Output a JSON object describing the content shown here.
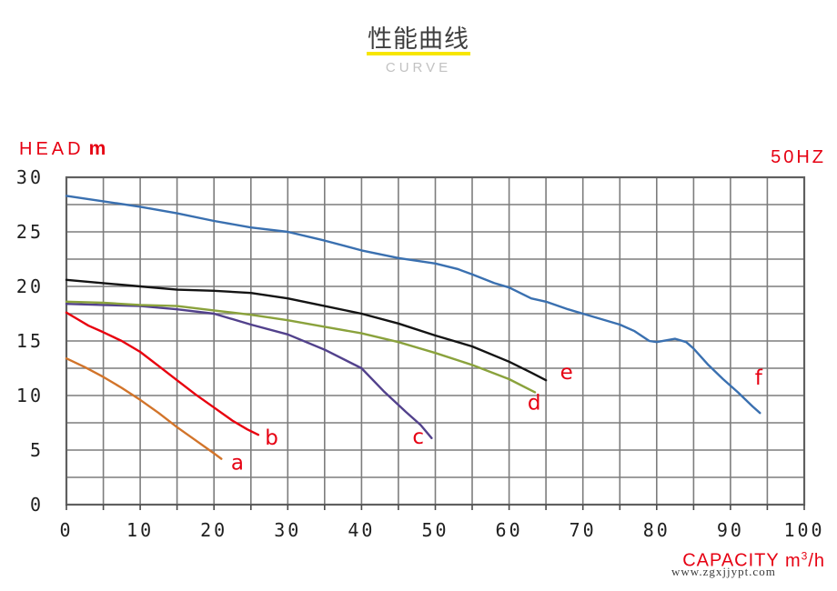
{
  "header": {
    "title": "性能曲线",
    "subtitle": "CURVE",
    "underline_color": "#f7e600"
  },
  "chart": {
    "head_label": "HEAD",
    "head_unit": "m",
    "freq_label": "50HZ",
    "capacity_label": "CAPACITY",
    "capacity_unit_base": "m",
    "capacity_unit_sup": "3",
    "capacity_unit_rest": "/h",
    "axis_title_color": "#e60012",
    "tick_label_color": "#1f1f1f",
    "grid_color": "#7d7d7d"
  },
  "watermark": "www.zgxjjypt.com",
  "chart_data": {
    "type": "line",
    "title": "性能曲线 (CURVE)",
    "xlabel": "CAPACITY m3/h",
    "ylabel": "HEAD m",
    "frequency": "50HZ",
    "xlim": [
      0,
      100
    ],
    "ylim": [
      0,
      30
    ],
    "x_ticks": [
      0,
      10,
      20,
      30,
      40,
      50,
      60,
      70,
      80,
      90,
      100
    ],
    "y_ticks": [
      0,
      5,
      10,
      15,
      20,
      25,
      30
    ],
    "grid": true,
    "grid_x_step": 5,
    "grid_y_step": 2.5,
    "series_label_color": "#e60012",
    "series": [
      {
        "name": "a",
        "color": "#d2742a",
        "label_pos": [
          22.3,
          3.2
        ],
        "points": [
          [
            0,
            13.4
          ],
          [
            2.5,
            12.6
          ],
          [
            5,
            11.7
          ],
          [
            7.5,
            10.7
          ],
          [
            10,
            9.6
          ],
          [
            12.5,
            8.4
          ],
          [
            15,
            7.1
          ],
          [
            17.5,
            5.9
          ],
          [
            20,
            4.7
          ],
          [
            21,
            4.2
          ]
        ]
      },
      {
        "name": "b",
        "color": "#e8000e",
        "label_pos": [
          26.9,
          5.5
        ],
        "points": [
          [
            0,
            17.6
          ],
          [
            1.5,
            17.0
          ],
          [
            3,
            16.4
          ],
          [
            5,
            15.8
          ],
          [
            7.5,
            15.0
          ],
          [
            10,
            14.0
          ],
          [
            12.5,
            12.7
          ],
          [
            15,
            11.4
          ],
          [
            17.5,
            10.1
          ],
          [
            20,
            8.9
          ],
          [
            22.5,
            7.7
          ],
          [
            24.5,
            6.9
          ],
          [
            26,
            6.4
          ]
        ]
      },
      {
        "name": "c",
        "color": "#52418c",
        "label_pos": [
          46.9,
          5.6
        ],
        "points": [
          [
            0,
            18.4
          ],
          [
            5,
            18.3
          ],
          [
            10,
            18.2
          ],
          [
            15,
            17.9
          ],
          [
            20,
            17.5
          ],
          [
            25,
            16.5
          ],
          [
            30,
            15.6
          ],
          [
            35,
            14.2
          ],
          [
            40,
            12.5
          ],
          [
            43,
            10.4
          ],
          [
            46,
            8.5
          ],
          [
            48,
            7.3
          ],
          [
            49.5,
            6.1
          ]
        ]
      },
      {
        "name": "d",
        "color": "#8aa23c",
        "label_pos": [
          62.5,
          8.7
        ],
        "points": [
          [
            0,
            18.6
          ],
          [
            5,
            18.5
          ],
          [
            10,
            18.3
          ],
          [
            15,
            18.2
          ],
          [
            20,
            17.8
          ],
          [
            25,
            17.4
          ],
          [
            30,
            16.9
          ],
          [
            35,
            16.3
          ],
          [
            40,
            15.7
          ],
          [
            45,
            14.9
          ],
          [
            50,
            13.9
          ],
          [
            55,
            12.8
          ],
          [
            60,
            11.5
          ],
          [
            63.5,
            10.3
          ]
        ]
      },
      {
        "name": "e",
        "color": "#141414",
        "label_pos": [
          66.9,
          11.5
        ],
        "points": [
          [
            0,
            20.6
          ],
          [
            5,
            20.3
          ],
          [
            10,
            20.0
          ],
          [
            15,
            19.7
          ],
          [
            20,
            19.6
          ],
          [
            25,
            19.4
          ],
          [
            30,
            18.9
          ],
          [
            35,
            18.2
          ],
          [
            40,
            17.5
          ],
          [
            45,
            16.6
          ],
          [
            50,
            15.5
          ],
          [
            55,
            14.5
          ],
          [
            60,
            13.1
          ],
          [
            63,
            12.1
          ],
          [
            65,
            11.4
          ]
        ]
      },
      {
        "name": "f",
        "color": "#3a70b0",
        "label_pos": [
          93.3,
          11.0
        ],
        "points": [
          [
            0,
            28.3
          ],
          [
            5,
            27.8
          ],
          [
            10,
            27.3
          ],
          [
            15,
            26.7
          ],
          [
            20,
            26.0
          ],
          [
            25,
            25.4
          ],
          [
            30,
            25.0
          ],
          [
            35,
            24.2
          ],
          [
            40,
            23.3
          ],
          [
            45,
            22.6
          ],
          [
            50,
            22.1
          ],
          [
            53,
            21.6
          ],
          [
            55,
            21.1
          ],
          [
            58,
            20.3
          ],
          [
            60,
            19.9
          ],
          [
            63,
            18.9
          ],
          [
            65,
            18.6
          ],
          [
            68,
            17.9
          ],
          [
            70,
            17.5
          ],
          [
            75,
            16.5
          ],
          [
            77,
            15.9
          ],
          [
            79,
            15.0
          ],
          [
            80,
            14.9
          ],
          [
            82.5,
            15.2
          ],
          [
            84,
            14.9
          ],
          [
            85,
            14.3
          ],
          [
            87,
            12.8
          ],
          [
            89,
            11.5
          ],
          [
            91,
            10.3
          ],
          [
            93,
            9.0
          ],
          [
            94,
            8.4
          ]
        ]
      }
    ]
  }
}
